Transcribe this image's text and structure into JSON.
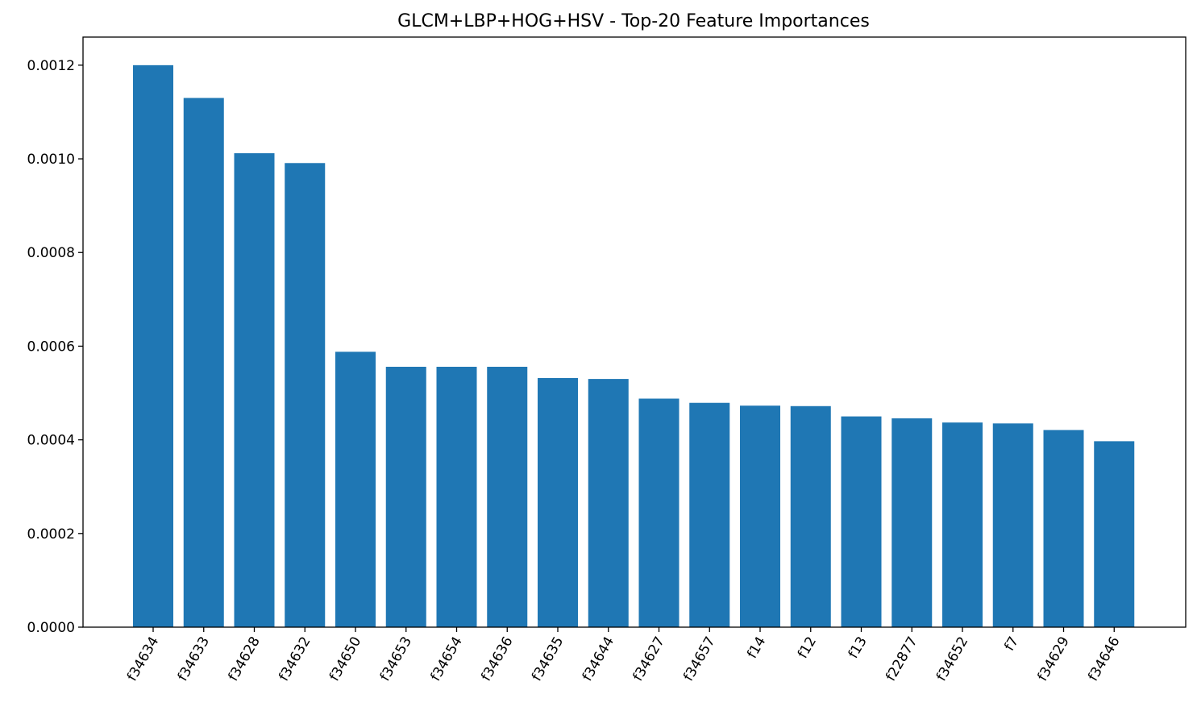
{
  "chart_data": {
    "type": "bar",
    "title": "GLCM+LBP+HOG+HSV - Top-20 Feature Importances",
    "xlabel": "",
    "ylabel": "",
    "categories": [
      "f34634",
      "f34633",
      "f34628",
      "f34632",
      "f34650",
      "f34653",
      "f34654",
      "f34636",
      "f34635",
      "f34644",
      "f34627",
      "f34657",
      "f14",
      "f12",
      "f13",
      "f22877",
      "f34652",
      "f7",
      "f34629",
      "f34646"
    ],
    "values": [
      0.0012,
      0.00113,
      0.001012,
      0.000991,
      0.000588,
      0.000556,
      0.000556,
      0.000556,
      0.000532,
      0.00053,
      0.000488,
      0.000479,
      0.000473,
      0.000472,
      0.00045,
      0.000446,
      0.000437,
      0.000435,
      0.000421,
      0.000397
    ],
    "yticks": [
      "0.0000",
      "0.0002",
      "0.0004",
      "0.0006",
      "0.0008",
      "0.0010",
      "0.0012"
    ],
    "ylim": [
      0,
      0.00126
    ],
    "bar_color": "#1f77b4",
    "grid": false,
    "legend": "none"
  }
}
